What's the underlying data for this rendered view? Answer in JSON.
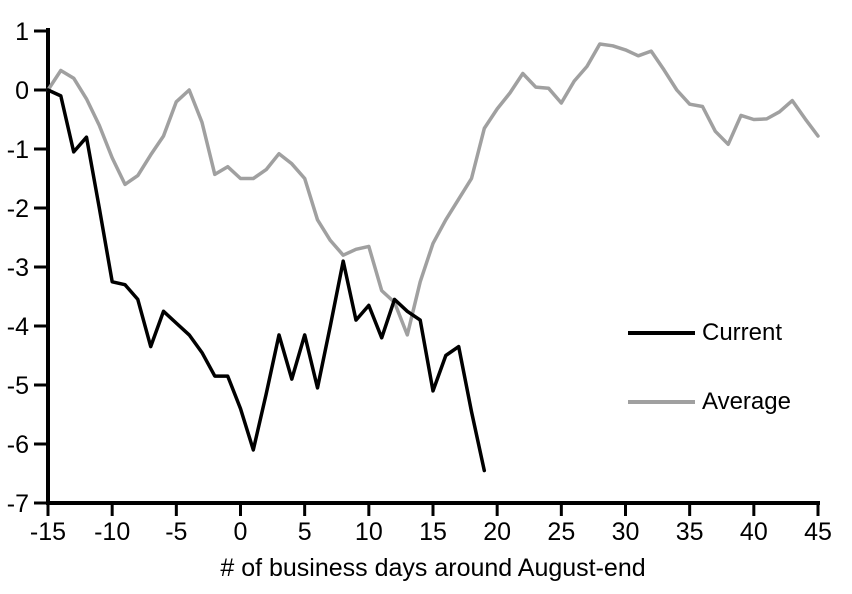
{
  "chart_data": {
    "type": "line",
    "title": "",
    "xlabel": "# of business days around August-end",
    "ylabel": "",
    "xlim": [
      -15,
      45
    ],
    "ylim": [
      -7,
      1
    ],
    "x_ticks": [
      -15,
      -10,
      -5,
      0,
      5,
      10,
      15,
      20,
      25,
      30,
      35,
      40,
      45
    ],
    "y_ticks": [
      1,
      0,
      -1,
      -2,
      -3,
      -4,
      -5,
      -6,
      -7
    ],
    "grid": false,
    "legend_position": "right-middle",
    "series": [
      {
        "name": "Current",
        "color": "#000000",
        "x": [
          -15,
          -14,
          -13,
          -12,
          -11,
          -10,
          -9,
          -8,
          -7,
          -6,
          -5,
          -4,
          -3,
          -2,
          -1,
          0,
          1,
          2,
          3,
          4,
          5,
          6,
          7,
          8,
          9,
          10,
          11,
          12,
          13,
          14,
          15,
          16,
          17,
          18,
          19
        ],
        "values": [
          0,
          -0.1,
          -1.05,
          -0.8,
          -2.0,
          -3.25,
          -3.3,
          -3.55,
          -4.35,
          -3.75,
          -3.95,
          -4.15,
          -4.45,
          -4.85,
          -4.85,
          -5.4,
          -6.1,
          -5.15,
          -4.15,
          -4.9,
          -4.15,
          -5.05,
          -4.0,
          -2.9,
          -3.9,
          -3.65,
          -4.2,
          -3.55,
          -3.75,
          -3.9,
          -5.1,
          -4.5,
          -4.35,
          -5.45,
          -6.45
        ]
      },
      {
        "name": "Average",
        "color": "#a0a0a0",
        "x": [
          -15,
          -14,
          -13,
          -12,
          -11,
          -10,
          -9,
          -8,
          -7,
          -6,
          -5,
          -4,
          -3,
          -2,
          -1,
          0,
          1,
          2,
          3,
          4,
          5,
          6,
          7,
          8,
          9,
          10,
          11,
          12,
          13,
          14,
          15,
          16,
          17,
          18,
          19,
          20,
          21,
          22,
          23,
          24,
          25,
          26,
          27,
          28,
          29,
          30,
          31,
          32,
          33,
          34,
          35,
          36,
          37,
          38,
          39,
          40,
          41,
          42,
          43,
          44,
          45
        ],
        "values": [
          0,
          0.33,
          0.2,
          -0.15,
          -0.6,
          -1.15,
          -1.6,
          -1.45,
          -1.1,
          -0.78,
          -0.2,
          0,
          -0.55,
          -1.43,
          -1.3,
          -1.5,
          -1.5,
          -1.35,
          -1.08,
          -1.25,
          -1.5,
          -2.2,
          -2.55,
          -2.8,
          -2.7,
          -2.65,
          -3.4,
          -3.6,
          -4.15,
          -3.25,
          -2.6,
          -2.2,
          -1.85,
          -1.5,
          -0.65,
          -0.32,
          -0.05,
          0.28,
          0.05,
          0.03,
          -0.22,
          0.15,
          0.4,
          0.78,
          0.75,
          0.68,
          0.58,
          0.66,
          0.34,
          0,
          -0.24,
          -0.28,
          -0.7,
          -0.92,
          -0.43,
          -0.5,
          -0.49,
          -0.37,
          -0.18,
          -0.49,
          -0.78
        ]
      }
    ]
  },
  "legend": {
    "items": [
      {
        "label": "Current",
        "color": "#000000"
      },
      {
        "label": "Average",
        "color": "#a0a0a0"
      }
    ]
  },
  "colors": {
    "background": "#ffffff",
    "axis": "#000000",
    "text": "#000000"
  }
}
